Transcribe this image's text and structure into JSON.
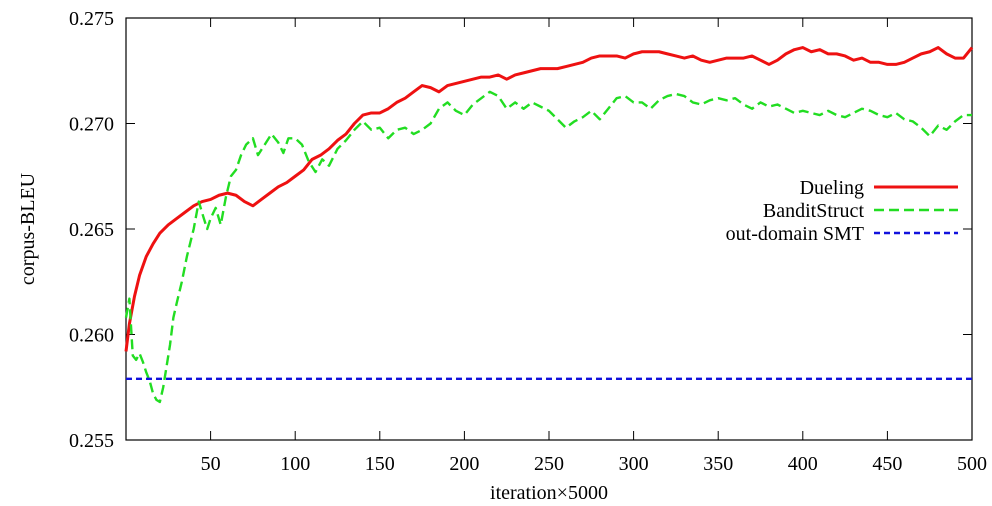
{
  "chart_data": {
    "type": "line",
    "title": "",
    "xlabel": "iteration×5000",
    "ylabel": "corpus-BLEU",
    "xlim": [
      0,
      500
    ],
    "ylim": [
      0.255,
      0.275
    ],
    "xticks": [
      50,
      100,
      150,
      200,
      250,
      300,
      350,
      400,
      450,
      500
    ],
    "xtick_labels": [
      "50",
      "100",
      "150",
      "200",
      "250",
      "300",
      "350",
      "400",
      "450",
      "500"
    ],
    "yticks": [
      0.255,
      0.26,
      0.265,
      0.27,
      0.275
    ],
    "ytick_labels": [
      "0.255",
      "0.260",
      "0.265",
      "0.270",
      "0.275"
    ],
    "grid": false,
    "legend_position": "right",
    "series": [
      {
        "name": "Dueling",
        "color": "#ee1111",
        "style": "solid",
        "points": [
          [
            0,
            0.2592
          ],
          [
            2,
            0.2605
          ],
          [
            5,
            0.2618
          ],
          [
            8,
            0.2628
          ],
          [
            12,
            0.2637
          ],
          [
            16,
            0.2643
          ],
          [
            20,
            0.2648
          ],
          [
            25,
            0.2652
          ],
          [
            30,
            0.2655
          ],
          [
            35,
            0.2658
          ],
          [
            40,
            0.2661
          ],
          [
            45,
            0.2663
          ],
          [
            50,
            0.2664
          ],
          [
            55,
            0.2666
          ],
          [
            60,
            0.2667
          ],
          [
            65,
            0.2666
          ],
          [
            70,
            0.2663
          ],
          [
            75,
            0.2661
          ],
          [
            80,
            0.2664
          ],
          [
            85,
            0.2667
          ],
          [
            90,
            0.267
          ],
          [
            95,
            0.2672
          ],
          [
            100,
            0.2675
          ],
          [
            105,
            0.2678
          ],
          [
            110,
            0.2683
          ],
          [
            115,
            0.2685
          ],
          [
            120,
            0.2688
          ],
          [
            125,
            0.2692
          ],
          [
            130,
            0.2695
          ],
          [
            135,
            0.27
          ],
          [
            140,
            0.2704
          ],
          [
            145,
            0.2705
          ],
          [
            150,
            0.2705
          ],
          [
            155,
            0.2707
          ],
          [
            160,
            0.271
          ],
          [
            165,
            0.2712
          ],
          [
            170,
            0.2715
          ],
          [
            175,
            0.2718
          ],
          [
            180,
            0.2717
          ],
          [
            185,
            0.2715
          ],
          [
            190,
            0.2718
          ],
          [
            195,
            0.2719
          ],
          [
            200,
            0.272
          ],
          [
            205,
            0.2721
          ],
          [
            210,
            0.2722
          ],
          [
            215,
            0.2722
          ],
          [
            220,
            0.2723
          ],
          [
            225,
            0.2721
          ],
          [
            230,
            0.2723
          ],
          [
            235,
            0.2724
          ],
          [
            240,
            0.2725
          ],
          [
            245,
            0.2726
          ],
          [
            250,
            0.2726
          ],
          [
            255,
            0.2726
          ],
          [
            260,
            0.2727
          ],
          [
            265,
            0.2728
          ],
          [
            270,
            0.2729
          ],
          [
            275,
            0.2731
          ],
          [
            280,
            0.2732
          ],
          [
            285,
            0.2732
          ],
          [
            290,
            0.2732
          ],
          [
            295,
            0.2731
          ],
          [
            300,
            0.2733
          ],
          [
            305,
            0.2734
          ],
          [
            310,
            0.2734
          ],
          [
            315,
            0.2734
          ],
          [
            320,
            0.2733
          ],
          [
            325,
            0.2732
          ],
          [
            330,
            0.2731
          ],
          [
            335,
            0.2732
          ],
          [
            340,
            0.273
          ],
          [
            345,
            0.2729
          ],
          [
            350,
            0.273
          ],
          [
            355,
            0.2731
          ],
          [
            360,
            0.2731
          ],
          [
            365,
            0.2731
          ],
          [
            370,
            0.2732
          ],
          [
            375,
            0.273
          ],
          [
            380,
            0.2728
          ],
          [
            385,
            0.273
          ],
          [
            390,
            0.2733
          ],
          [
            395,
            0.2735
          ],
          [
            400,
            0.2736
          ],
          [
            405,
            0.2734
          ],
          [
            410,
            0.2735
          ],
          [
            415,
            0.2733
          ],
          [
            420,
            0.2733
          ],
          [
            425,
            0.2732
          ],
          [
            430,
            0.273
          ],
          [
            435,
            0.2731
          ],
          [
            440,
            0.2729
          ],
          [
            445,
            0.2729
          ],
          [
            450,
            0.2728
          ],
          [
            455,
            0.2728
          ],
          [
            460,
            0.2729
          ],
          [
            465,
            0.2731
          ],
          [
            470,
            0.2733
          ],
          [
            475,
            0.2734
          ],
          [
            480,
            0.2736
          ],
          [
            485,
            0.2733
          ],
          [
            490,
            0.2731
          ],
          [
            495,
            0.2731
          ],
          [
            500,
            0.2736
          ]
        ]
      },
      {
        "name": "BanditStruct",
        "color": "#22dd22",
        "style": "dashed",
        "points": [
          [
            0,
            0.2608
          ],
          [
            2,
            0.2617
          ],
          [
            4,
            0.259
          ],
          [
            6,
            0.2588
          ],
          [
            8,
            0.2591
          ],
          [
            10,
            0.2587
          ],
          [
            12,
            0.2582
          ],
          [
            14,
            0.2578
          ],
          [
            16,
            0.2572
          ],
          [
            18,
            0.2569
          ],
          [
            20,
            0.2568
          ],
          [
            22,
            0.2575
          ],
          [
            24,
            0.2585
          ],
          [
            26,
            0.2595
          ],
          [
            28,
            0.2608
          ],
          [
            30,
            0.2615
          ],
          [
            33,
            0.2625
          ],
          [
            36,
            0.2637
          ],
          [
            40,
            0.265
          ],
          [
            43,
            0.2663
          ],
          [
            46,
            0.2655
          ],
          [
            48,
            0.265
          ],
          [
            50,
            0.2655
          ],
          [
            53,
            0.266
          ],
          [
            56,
            0.2652
          ],
          [
            59,
            0.2665
          ],
          [
            62,
            0.2675
          ],
          [
            65,
            0.2678
          ],
          [
            68,
            0.2685
          ],
          [
            71,
            0.269
          ],
          [
            75,
            0.2693
          ],
          [
            78,
            0.2685
          ],
          [
            82,
            0.269
          ],
          [
            86,
            0.2695
          ],
          [
            90,
            0.2691
          ],
          [
            93,
            0.2686
          ],
          [
            96,
            0.2693
          ],
          [
            100,
            0.2693
          ],
          [
            104,
            0.269
          ],
          [
            108,
            0.2682
          ],
          [
            112,
            0.2677
          ],
          [
            116,
            0.2683
          ],
          [
            120,
            0.268
          ],
          [
            125,
            0.2688
          ],
          [
            130,
            0.2692
          ],
          [
            135,
            0.2697
          ],
          [
            140,
            0.2701
          ],
          [
            145,
            0.2697
          ],
          [
            150,
            0.2698
          ],
          [
            155,
            0.2693
          ],
          [
            160,
            0.2697
          ],
          [
            165,
            0.2698
          ],
          [
            170,
            0.2695
          ],
          [
            175,
            0.2697
          ],
          [
            180,
            0.27
          ],
          [
            185,
            0.2707
          ],
          [
            190,
            0.271
          ],
          [
            195,
            0.2706
          ],
          [
            200,
            0.2704
          ],
          [
            205,
            0.2709
          ],
          [
            210,
            0.2712
          ],
          [
            215,
            0.2715
          ],
          [
            220,
            0.2713
          ],
          [
            225,
            0.2707
          ],
          [
            230,
            0.271
          ],
          [
            235,
            0.2707
          ],
          [
            240,
            0.271
          ],
          [
            245,
            0.2708
          ],
          [
            250,
            0.2706
          ],
          [
            255,
            0.2702
          ],
          [
            260,
            0.2698
          ],
          [
            265,
            0.2701
          ],
          [
            270,
            0.2703
          ],
          [
            275,
            0.2706
          ],
          [
            280,
            0.2702
          ],
          [
            285,
            0.2707
          ],
          [
            290,
            0.2712
          ],
          [
            295,
            0.2713
          ],
          [
            300,
            0.271
          ],
          [
            305,
            0.271
          ],
          [
            310,
            0.2707
          ],
          [
            315,
            0.2711
          ],
          [
            320,
            0.2713
          ],
          [
            325,
            0.2714
          ],
          [
            330,
            0.2713
          ],
          [
            335,
            0.271
          ],
          [
            340,
            0.2709
          ],
          [
            345,
            0.2711
          ],
          [
            350,
            0.2712
          ],
          [
            355,
            0.2711
          ],
          [
            360,
            0.2712
          ],
          [
            365,
            0.2709
          ],
          [
            370,
            0.2707
          ],
          [
            375,
            0.271
          ],
          [
            380,
            0.2708
          ],
          [
            385,
            0.2709
          ],
          [
            390,
            0.2707
          ],
          [
            395,
            0.2705
          ],
          [
            400,
            0.2706
          ],
          [
            405,
            0.2705
          ],
          [
            410,
            0.2704
          ],
          [
            415,
            0.2706
          ],
          [
            420,
            0.2704
          ],
          [
            425,
            0.2703
          ],
          [
            430,
            0.2705
          ],
          [
            435,
            0.2707
          ],
          [
            440,
            0.2706
          ],
          [
            445,
            0.2704
          ],
          [
            450,
            0.2703
          ],
          [
            455,
            0.2705
          ],
          [
            460,
            0.2702
          ],
          [
            465,
            0.2701
          ],
          [
            470,
            0.2698
          ],
          [
            475,
            0.2694
          ],
          [
            480,
            0.2699
          ],
          [
            485,
            0.2697
          ],
          [
            490,
            0.2701
          ],
          [
            495,
            0.2704
          ],
          [
            500,
            0.2704
          ]
        ]
      },
      {
        "name": "out-domain SMT",
        "color": "#1111dd",
        "style": "dotted",
        "points": [
          [
            0,
            0.2579
          ],
          [
            500,
            0.2579
          ]
        ]
      }
    ]
  }
}
